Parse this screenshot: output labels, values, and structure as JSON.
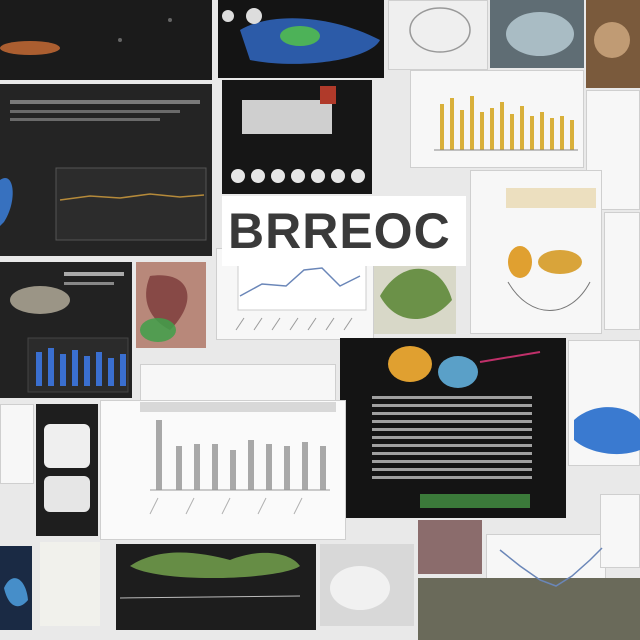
{
  "wordmark": {
    "text": "BRREOC"
  },
  "palette": {
    "background": "#e9e9e9",
    "dark_panel": "#1b1b1b",
    "paper": "#f7f7f7",
    "bar_gold": "#d9b03a",
    "bar_gray": "#a8a8a8",
    "bar_blue": "#3a6fd0",
    "line_blue": "#6a86b8",
    "leaf_green": "#5f8a3a"
  },
  "tiles": [
    {
      "name": "dark-specimen-photo"
    },
    {
      "name": "blue-organ-photo"
    },
    {
      "name": "device-photo"
    },
    {
      "name": "sketch-tile"
    },
    {
      "name": "gold-bar-chart-tile"
    },
    {
      "name": "dark-slide-tile"
    },
    {
      "name": "line-chart-tile"
    },
    {
      "name": "leaf-photo-tile"
    },
    {
      "name": "blue-bar-slide-tile"
    },
    {
      "name": "gray-bar-chart-tile"
    },
    {
      "name": "dark-text-slide-tile"
    },
    {
      "name": "illustration-tile"
    },
    {
      "name": "curve-chart-tile"
    }
  ]
}
